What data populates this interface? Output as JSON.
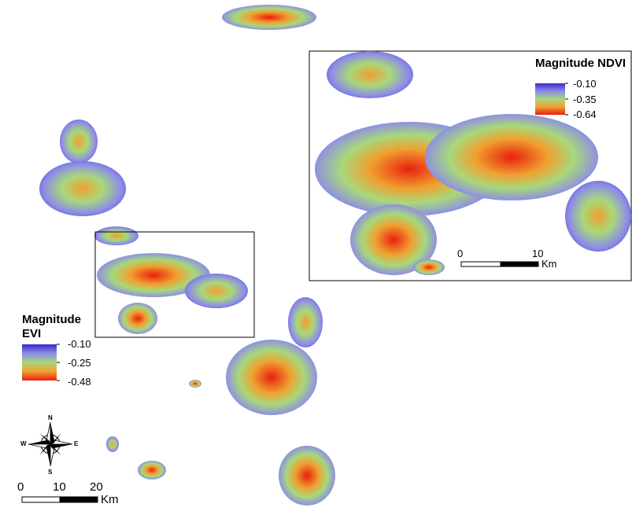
{
  "main_map": {
    "legend": {
      "title_line1": "Magnitude",
      "title_line2": "EVI",
      "ticks": [
        "-0.10",
        "-0.25",
        "-0.48"
      ]
    },
    "scale_bar": {
      "labels": [
        "0",
        "10",
        "20"
      ],
      "unit": "Km"
    },
    "north_arrow": {
      "icon": "compass-rose-icon",
      "letters": {
        "n": "N",
        "s": "S",
        "e": "E",
        "w": "W"
      }
    }
  },
  "inset_map": {
    "legend": {
      "title": "Magnitude NDVI",
      "ticks": [
        "-0.10",
        "-0.35",
        "-0.64"
      ]
    },
    "scale_bar": {
      "labels": [
        "0",
        "10"
      ],
      "unit": "Km"
    }
  },
  "colors": {
    "ramp_top": "#3a28c8",
    "ramp_mid": "#a8d87a",
    "ramp_low": "#f0a030",
    "ramp_bottom": "#e82010",
    "inset_border": "#000000"
  }
}
